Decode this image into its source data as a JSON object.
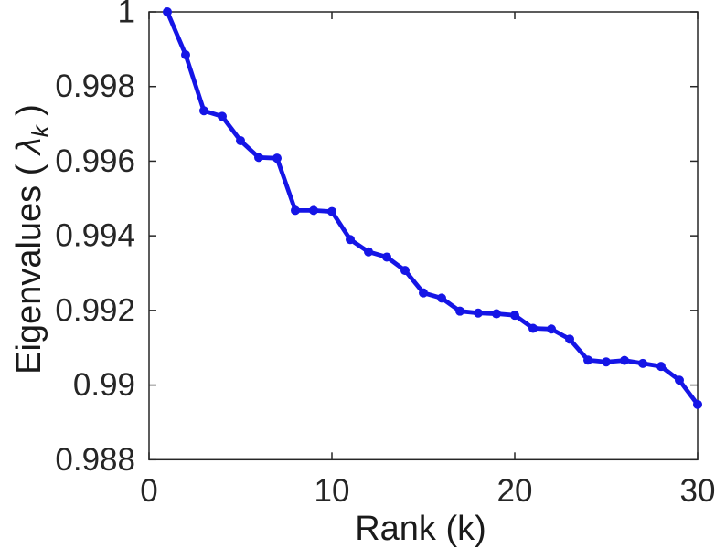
{
  "figure": {
    "background": "#ffffff"
  },
  "chart_data": {
    "type": "line",
    "title": "",
    "xlabel": "Rank (k)",
    "ylabel": "Eigenvalues ( λ_k )",
    "ylabel_parts": {
      "prefix": "Eigenvalues ( ",
      "lambda": "λ",
      "subscript": "k",
      "suffix": " )"
    },
    "x": [
      1,
      2,
      3,
      4,
      5,
      6,
      7,
      8,
      9,
      10,
      11,
      12,
      13,
      14,
      15,
      16,
      17,
      18,
      19,
      20,
      21,
      22,
      23,
      24,
      25,
      26,
      27,
      28,
      29,
      30
    ],
    "y": [
      1.0,
      0.99885,
      0.99735,
      0.9972,
      0.99655,
      0.9961,
      0.99608,
      0.99468,
      0.99468,
      0.99465,
      0.9939,
      0.99357,
      0.99343,
      0.99307,
      0.99247,
      0.99233,
      0.99198,
      0.99193,
      0.99191,
      0.99187,
      0.99152,
      0.9915,
      0.99123,
      0.99067,
      0.99062,
      0.99066,
      0.99058,
      0.9905,
      0.99013,
      0.98948
    ],
    "xlim": [
      0,
      30
    ],
    "ylim": [
      0.988,
      1.0
    ],
    "x_ticks": {
      "values": [
        0,
        10,
        20,
        30
      ],
      "labels": [
        "0",
        "10",
        "20",
        "30"
      ]
    },
    "y_ticks": {
      "values": [
        0.988,
        0.99,
        0.992,
        0.994,
        0.996,
        0.998,
        1.0
      ],
      "labels": [
        "0.988",
        "0.99",
        "0.992",
        "0.994",
        "0.996",
        "0.998",
        "1"
      ]
    },
    "grid": false,
    "legend": null,
    "line_color": "#1515e6",
    "marker": "circle",
    "axis_color": "#262626",
    "label_color": "#1a1a1a"
  }
}
